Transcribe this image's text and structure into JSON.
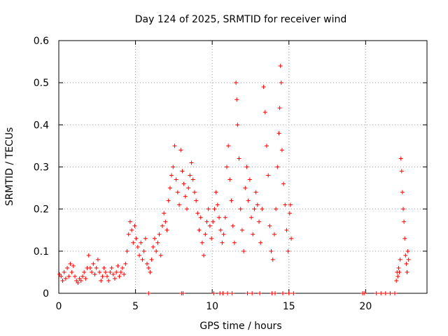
{
  "chart_data": {
    "type": "scatter",
    "title": "Day 124 of 2025, SRMTID for receiver wind",
    "xlabel": "GPS time / hours",
    "ylabel": "SRMTID / TECUs",
    "xlim": [
      0,
      24
    ],
    "ylim": [
      0,
      0.6
    ],
    "x_ticks": [
      0,
      5,
      10,
      15,
      20
    ],
    "x_tick_labels": [
      "0",
      "5",
      "10",
      "15",
      "20"
    ],
    "y_ticks": [
      0,
      0.1,
      0.2,
      0.3,
      0.4,
      0.5,
      0.6
    ],
    "y_tick_labels": [
      "0",
      "0.1",
      "0.2",
      "0.3",
      "0.4",
      "0.5",
      "0.6"
    ],
    "grid": true,
    "marker": "+",
    "series": [
      {
        "name": "SRMTID",
        "color": "#ff0000",
        "points": [
          [
            0.05,
            0.045
          ],
          [
            0.15,
            0.04
          ],
          [
            0.25,
            0.03
          ],
          [
            0.35,
            0.05
          ],
          [
            0.45,
            0.035
          ],
          [
            0.55,
            0.06
          ],
          [
            0.65,
            0.04
          ],
          [
            0.75,
            0.07
          ],
          [
            0.85,
            0.05
          ],
          [
            0.95,
            0.065
          ],
          [
            1.05,
            0.04
          ],
          [
            1.15,
            0.03
          ],
          [
            1.25,
            0.025
          ],
          [
            1.35,
            0.035
          ],
          [
            1.45,
            0.03
          ],
          [
            1.55,
            0.04
          ],
          [
            1.65,
            0.05
          ],
          [
            1.75,
            0.035
          ],
          [
            1.85,
            0.06
          ],
          [
            1.95,
            0.09
          ],
          [
            2.05,
            0.06
          ],
          [
            2.15,
            0.05
          ],
          [
            2.25,
            0.07
          ],
          [
            2.35,
            0.045
          ],
          [
            2.45,
            0.06
          ],
          [
            2.55,
            0.08
          ],
          [
            2.65,
            0.05
          ],
          [
            2.75,
            0.03
          ],
          [
            2.85,
            0.04
          ],
          [
            2.95,
            0.06
          ],
          [
            3.05,
            0.05
          ],
          [
            3.15,
            0.04
          ],
          [
            3.25,
            0.03
          ],
          [
            3.35,
            0.05
          ],
          [
            3.45,
            0.06
          ],
          [
            3.55,
            0.045
          ],
          [
            3.65,
            0.035
          ],
          [
            3.75,
            0.05
          ],
          [
            3.85,
            0.065
          ],
          [
            3.95,
            0.04
          ],
          [
            4.05,
            0.05
          ],
          [
            4.15,
            0.06
          ],
          [
            4.25,
            0.045
          ],
          [
            4.35,
            0.07
          ],
          [
            4.45,
            0.1
          ],
          [
            4.55,
            0.14
          ],
          [
            4.65,
            0.17
          ],
          [
            4.75,
            0.15
          ],
          [
            4.85,
            0.12
          ],
          [
            4.95,
            0.16
          ],
          [
            5.05,
            0.13
          ],
          [
            5.15,
            0.11
          ],
          [
            5.25,
            0.09
          ],
          [
            5.35,
            0.12
          ],
          [
            5.45,
            0.08
          ],
          [
            5.55,
            0.1
          ],
          [
            5.65,
            0.13
          ],
          [
            5.75,
            0.07
          ],
          [
            5.85,
            0.06
          ],
          [
            5.95,
            0.05
          ],
          [
            6.05,
            0.08
          ],
          [
            6.15,
            0.11
          ],
          [
            6.25,
            0.13
          ],
          [
            6.35,
            0.1
          ],
          [
            6.45,
            0.12
          ],
          [
            6.55,
            0.14
          ],
          [
            6.65,
            0.09
          ],
          [
            6.75,
            0.16
          ],
          [
            6.85,
            0.19
          ],
          [
            6.95,
            0.17
          ],
          [
            7.05,
            0.15
          ],
          [
            7.15,
            0.22
          ],
          [
            7.25,
            0.25
          ],
          [
            7.35,
            0.28
          ],
          [
            7.45,
            0.3
          ],
          [
            7.55,
            0.35
          ],
          [
            7.65,
            0.27
          ],
          [
            7.75,
            0.24
          ],
          [
            7.85,
            0.21
          ],
          [
            7.95,
            0.34
          ],
          [
            8.05,
            0.29
          ],
          [
            8.15,
            0.26
          ],
          [
            8.25,
            0.23
          ],
          [
            8.35,
            0.2
          ],
          [
            8.45,
            0.25
          ],
          [
            8.55,
            0.28
          ],
          [
            8.65,
            0.31
          ],
          [
            8.75,
            0.27
          ],
          [
            8.85,
            0.24
          ],
          [
            8.95,
            0.22
          ],
          [
            9.05,
            0.19
          ],
          [
            9.15,
            0.15
          ],
          [
            9.25,
            0.18
          ],
          [
            9.35,
            0.12
          ],
          [
            9.45,
            0.09
          ],
          [
            9.55,
            0.14
          ],
          [
            9.65,
            0.17
          ],
          [
            9.75,
            0.2
          ],
          [
            9.85,
            0.16
          ],
          [
            9.95,
            0.13
          ],
          [
            10.05,
            0.17
          ],
          [
            10.15,
            0.2
          ],
          [
            10.25,
            0.24
          ],
          [
            10.35,
            0.21
          ],
          [
            10.45,
            0.18
          ],
          [
            10.55,
            0.15
          ],
          [
            10.65,
            0.12
          ],
          [
            10.75,
            0.14
          ],
          [
            10.85,
            0.18
          ],
          [
            10.95,
            0.3
          ],
          [
            11.05,
            0.35
          ],
          [
            11.15,
            0.27
          ],
          [
            11.25,
            0.22
          ],
          [
            11.35,
            0.16
          ],
          [
            11.45,
            0.12
          ],
          [
            11.55,
            0.5
          ],
          [
            11.6,
            0.46
          ],
          [
            11.65,
            0.4
          ],
          [
            11.75,
            0.32
          ],
          [
            11.85,
            0.2
          ],
          [
            11.95,
            0.15
          ],
          [
            12.05,
            0.1
          ],
          [
            12.15,
            0.25
          ],
          [
            12.25,
            0.3
          ],
          [
            12.35,
            0.22
          ],
          [
            12.45,
            0.27
          ],
          [
            12.55,
            0.18
          ],
          [
            12.65,
            0.14
          ],
          [
            12.75,
            0.2
          ],
          [
            12.85,
            0.24
          ],
          [
            12.95,
            0.21
          ],
          [
            13.05,
            0.17
          ],
          [
            13.15,
            0.12
          ],
          [
            13.25,
            0.2
          ],
          [
            13.35,
            0.49
          ],
          [
            13.45,
            0.43
          ],
          [
            13.55,
            0.35
          ],
          [
            13.65,
            0.28
          ],
          [
            13.75,
            0.16
          ],
          [
            13.85,
            0.1
          ],
          [
            13.95,
            0.08
          ],
          [
            14.05,
            0.14
          ],
          [
            14.15,
            0.2
          ],
          [
            14.25,
            0.3
          ],
          [
            14.35,
            0.38
          ],
          [
            14.4,
            0.44
          ],
          [
            14.45,
            0.54
          ],
          [
            14.5,
            0.5
          ],
          [
            14.55,
            0.34
          ],
          [
            14.65,
            0.26
          ],
          [
            14.75,
            0.21
          ],
          [
            14.85,
            0.15
          ],
          [
            14.95,
            0.1
          ],
          [
            15.05,
            0.19
          ],
          [
            15.1,
            0.21
          ],
          [
            15.15,
            0.13
          ],
          [
            22.0,
            0.03
          ],
          [
            22.05,
            0.05
          ],
          [
            22.1,
            0.04
          ],
          [
            22.15,
            0.06
          ],
          [
            22.2,
            0.05
          ],
          [
            22.25,
            0.08
          ],
          [
            22.3,
            0.32
          ],
          [
            22.35,
            0.29
          ],
          [
            22.4,
            0.24
          ],
          [
            22.45,
            0.2
          ],
          [
            22.5,
            0.17
          ],
          [
            22.55,
            0.13
          ],
          [
            22.6,
            0.09
          ],
          [
            22.65,
            0.07
          ],
          [
            22.7,
            0.05
          ],
          [
            22.75,
            0.1
          ],
          [
            22.8,
            0.08
          ],
          [
            5.85,
            0.0
          ],
          [
            8.0,
            0.0
          ],
          [
            8.1,
            0.0
          ],
          [
            10.1,
            0.0
          ],
          [
            10.5,
            0.0
          ],
          [
            10.7,
            0.0
          ],
          [
            11.0,
            0.0
          ],
          [
            11.3,
            0.0
          ],
          [
            12.3,
            0.0
          ],
          [
            12.6,
            0.0
          ],
          [
            13.1,
            0.0
          ],
          [
            13.9,
            0.0
          ],
          [
            14.1,
            0.0
          ],
          [
            14.6,
            0.0
          ],
          [
            15.0,
            0.0
          ],
          [
            15.3,
            0.0
          ],
          [
            19.8,
            0.0
          ],
          [
            19.9,
            0.0
          ],
          [
            20.7,
            0.0
          ],
          [
            21.0,
            0.0
          ],
          [
            21.3,
            0.0
          ],
          [
            21.6,
            0.0
          ],
          [
            21.9,
            0.0
          ]
        ]
      }
    ]
  }
}
